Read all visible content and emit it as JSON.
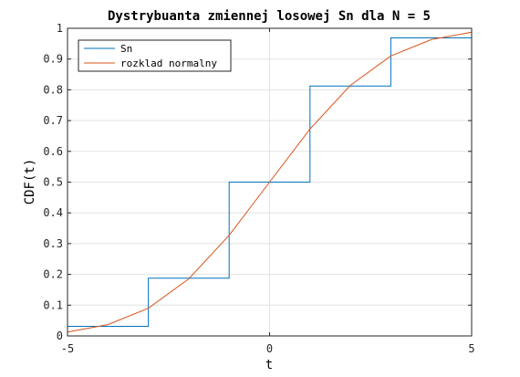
{
  "chart_data": {
    "type": "line",
    "title": "Dystrybuanta zmiennej losowej Sn dla N = 5",
    "xlabel": "t",
    "ylabel": "CDF(t)",
    "xlim": [
      -5,
      5
    ],
    "ylim": [
      0,
      1
    ],
    "grid": true,
    "legend_position": "top-left",
    "x_ticks": [
      "-5",
      "0",
      "5"
    ],
    "y_ticks": [
      "0",
      "0.1",
      "0.2",
      "0.3",
      "0.4",
      "0.5",
      "0.6",
      "0.7",
      "0.8",
      "0.9",
      "1"
    ],
    "series": [
      {
        "name": "Sn",
        "color": "#0072BD",
        "step": true,
        "x": [
          -5,
          -3,
          -1,
          1,
          3,
          5
        ],
        "y": [
          0.03125,
          0.1875,
          0.5,
          0.8125,
          0.96875,
          1.0
        ]
      },
      {
        "name": "rozklad normalny",
        "color": "#D95319",
        "step": false,
        "x": [
          -5,
          -4,
          -3,
          -2,
          -1,
          0,
          1,
          2,
          3,
          4,
          5
        ],
        "y": [
          0.0127,
          0.0368,
          0.0899,
          0.1855,
          0.3274,
          0.5,
          0.6726,
          0.8145,
          0.9101,
          0.9632,
          0.9873
        ]
      }
    ]
  }
}
